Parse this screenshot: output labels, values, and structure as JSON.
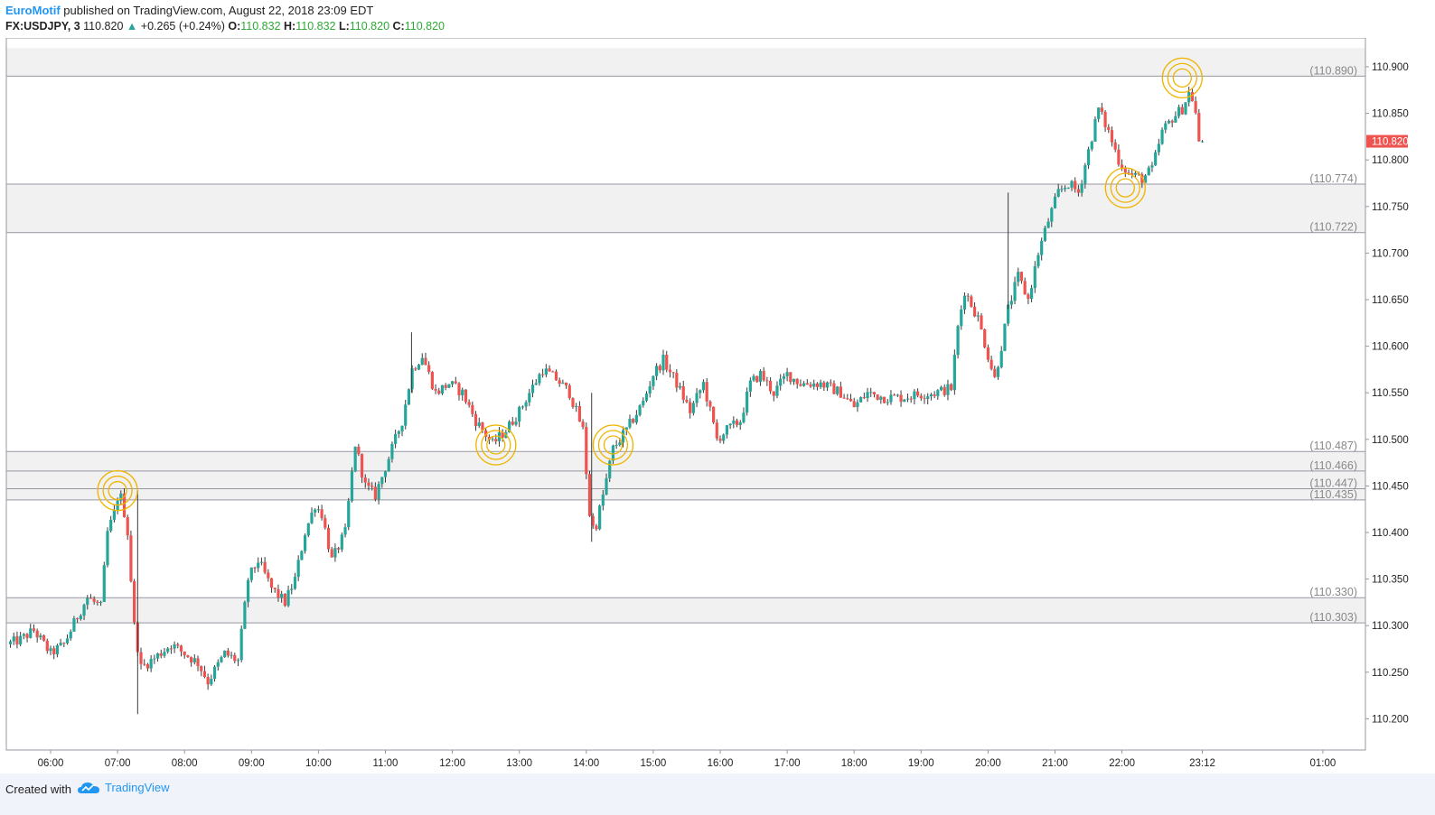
{
  "header": {
    "author": "EuroMotif",
    "published_text": "published on TradingView.com, August 22, 2018 23:09 EDT",
    "symbol": "FX:USDJPY, 3",
    "last": "110.820",
    "change": "+0.265 (+0.24%)",
    "open_label": "O:",
    "open": "110.832",
    "high_label": "H:",
    "high": "110.832",
    "low_label": "L:",
    "low": "110.820",
    "close_label": "C:",
    "close": "110.820"
  },
  "footer": {
    "created_with": "Created with",
    "brand": "TradingView"
  },
  "colors": {
    "up": "#26a69a",
    "down": "#ef5350",
    "level_line": "#9598a1",
    "zone_fill": "#ececec",
    "circle": "#f0b400",
    "price_tag": "#ef5350"
  },
  "chart_data": {
    "type": "candlestick",
    "ylim": [
      110.165,
      110.92
    ],
    "y_ticks": [
      "110.900",
      "110.850",
      "110.800",
      "110.750",
      "110.700",
      "110.650",
      "110.600",
      "110.550",
      "110.500",
      "110.450",
      "110.400",
      "110.350",
      "110.300",
      "110.250",
      "110.200"
    ],
    "y_tick_values": [
      110.9,
      110.85,
      110.8,
      110.75,
      110.7,
      110.65,
      110.6,
      110.55,
      110.5,
      110.45,
      110.4,
      110.35,
      110.3,
      110.25,
      110.2
    ],
    "x_ticks": [
      "06:00",
      "07:00",
      "08:00",
      "09:00",
      "10:00",
      "11:00",
      "12:00",
      "13:00",
      "14:00",
      "15:00",
      "16:00",
      "17:00",
      "18:00",
      "19:00",
      "20:00",
      "21:00",
      "22:00",
      "23:12",
      "01:00"
    ],
    "x_tick_hours": [
      6,
      7,
      8,
      9,
      10,
      11,
      12,
      13,
      14,
      15,
      16,
      17,
      18,
      19,
      20,
      21,
      22,
      23.2,
      25
    ],
    "current_price": "110.820",
    "levels": [
      {
        "value": 110.89,
        "label": "(110.890)"
      },
      {
        "value": 110.774,
        "label": "(110.774)"
      },
      {
        "value": 110.722,
        "label": "(110.722)"
      },
      {
        "value": 110.487,
        "label": "(110.487)"
      },
      {
        "value": 110.466,
        "label": "(110.466)"
      },
      {
        "value": 110.447,
        "label": "(110.447)"
      },
      {
        "value": 110.435,
        "label": "(110.435)"
      },
      {
        "value": 110.33,
        "label": "(110.330)"
      },
      {
        "value": 110.303,
        "label": "(110.303)"
      }
    ],
    "zones": [
      [
        110.89,
        110.92
      ],
      [
        110.722,
        110.774
      ],
      [
        110.435,
        110.487
      ],
      [
        110.303,
        110.33
      ]
    ],
    "highlight_circles": [
      {
        "hour": 7.0,
        "price": 110.445
      },
      {
        "hour": 12.65,
        "price": 110.494
      },
      {
        "hour": 14.4,
        "price": 110.494
      },
      {
        "hour": 22.05,
        "price": 110.77
      },
      {
        "hour": 22.9,
        "price": 110.888
      }
    ],
    "path": [
      [
        5.35,
        110.28
      ],
      [
        5.55,
        110.285
      ],
      [
        5.75,
        110.295
      ],
      [
        6.0,
        110.27
      ],
      [
        6.2,
        110.28
      ],
      [
        6.4,
        110.31
      ],
      [
        6.55,
        110.33
      ],
      [
        6.75,
        110.32
      ],
      [
        6.85,
        110.4
      ],
      [
        6.95,
        110.42
      ],
      [
        7.02,
        110.445
      ],
      [
        7.08,
        110.43
      ],
      [
        7.15,
        110.4
      ],
      [
        7.25,
        110.3
      ],
      [
        7.35,
        110.255
      ],
      [
        7.55,
        110.265
      ],
      [
        7.8,
        110.28
      ],
      [
        8.0,
        110.27
      ],
      [
        8.2,
        110.26
      ],
      [
        8.35,
        110.24
      ],
      [
        8.6,
        110.27
      ],
      [
        8.8,
        110.262
      ],
      [
        8.95,
        110.35
      ],
      [
        9.1,
        110.37
      ],
      [
        9.3,
        110.34
      ],
      [
        9.5,
        110.325
      ],
      [
        9.65,
        110.35
      ],
      [
        9.8,
        110.4
      ],
      [
        9.95,
        110.43
      ],
      [
        10.05,
        110.42
      ],
      [
        10.2,
        110.37
      ],
      [
        10.4,
        110.4
      ],
      [
        10.55,
        110.495
      ],
      [
        10.7,
        110.45
      ],
      [
        10.85,
        110.44
      ],
      [
        11.0,
        110.47
      ],
      [
        11.15,
        110.5
      ],
      [
        11.25,
        110.52
      ],
      [
        11.4,
        110.575
      ],
      [
        11.55,
        110.59
      ],
      [
        11.75,
        110.55
      ],
      [
        11.95,
        110.56
      ],
      [
        12.15,
        110.55
      ],
      [
        12.35,
        110.52
      ],
      [
        12.6,
        110.495
      ],
      [
        12.8,
        110.51
      ],
      [
        13.0,
        110.53
      ],
      [
        13.15,
        110.55
      ],
      [
        13.35,
        110.575
      ],
      [
        13.55,
        110.565
      ],
      [
        13.75,
        110.55
      ],
      [
        13.95,
        110.51
      ],
      [
        14.05,
        110.42
      ],
      [
        14.12,
        110.4
      ],
      [
        14.25,
        110.44
      ],
      [
        14.4,
        110.49
      ],
      [
        14.6,
        110.51
      ],
      [
        14.85,
        110.54
      ],
      [
        15.0,
        110.57
      ],
      [
        15.15,
        110.585
      ],
      [
        15.35,
        110.56
      ],
      [
        15.55,
        110.53
      ],
      [
        15.75,
        110.56
      ],
      [
        15.95,
        110.5
      ],
      [
        16.1,
        110.51
      ],
      [
        16.3,
        110.52
      ],
      [
        16.45,
        110.56
      ],
      [
        16.6,
        110.57
      ],
      [
        16.8,
        110.55
      ],
      [
        17.0,
        110.57
      ],
      [
        17.2,
        110.56
      ],
      [
        17.5,
        110.56
      ],
      [
        17.8,
        110.55
      ],
      [
        18.0,
        110.535
      ],
      [
        18.2,
        110.55
      ],
      [
        18.45,
        110.545
      ],
      [
        18.7,
        110.545
      ],
      [
        18.95,
        110.548
      ],
      [
        19.2,
        110.55
      ],
      [
        19.45,
        110.555
      ],
      [
        19.55,
        110.62
      ],
      [
        19.65,
        110.66
      ],
      [
        19.85,
        110.63
      ],
      [
        20.0,
        110.59
      ],
      [
        20.1,
        110.565
      ],
      [
        20.2,
        110.6
      ],
      [
        20.3,
        110.64
      ],
      [
        20.45,
        110.675
      ],
      [
        20.6,
        110.65
      ],
      [
        20.75,
        110.7
      ],
      [
        20.9,
        110.735
      ],
      [
        21.05,
        110.765
      ],
      [
        21.2,
        110.775
      ],
      [
        21.35,
        110.765
      ],
      [
        21.5,
        110.81
      ],
      [
        21.65,
        110.855
      ],
      [
        21.8,
        110.83
      ],
      [
        21.95,
        110.8
      ],
      [
        22.1,
        110.785
      ],
      [
        22.3,
        110.78
      ],
      [
        22.45,
        110.79
      ],
      [
        22.6,
        110.83
      ],
      [
        22.75,
        110.845
      ],
      [
        22.9,
        110.855
      ],
      [
        23.02,
        110.875
      ],
      [
        23.1,
        110.85
      ],
      [
        23.2,
        110.825
      ]
    ]
  }
}
